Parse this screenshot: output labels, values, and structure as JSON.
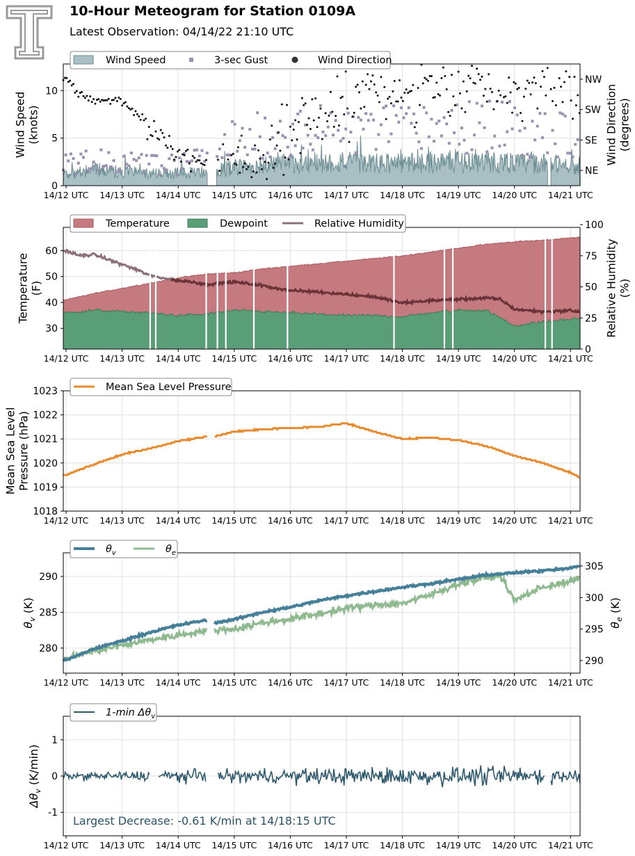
{
  "header": {
    "title": "10-Hour Meteogram for Station 0109A",
    "subtitle": "Latest Observation: 04/14/22 21:10 UTC"
  },
  "colors": {
    "wind_fill": "#a9bfc4",
    "wind_line": "#6b8d92",
    "gust": "#9a91b0",
    "direction": "#111111",
    "temperature": "#c47a7e",
    "dewpoint": "#5a9e78",
    "rh": "#8b7078",
    "rh_dark": "#6b3238",
    "pressure": "#e88b2e",
    "theta_v": "#467f98",
    "theta_e": "#8fb98e",
    "dtheta": "#2f5a6e",
    "annotation": "#2a5468",
    "grid": "#e0e0e0",
    "logo": "#9a9a9a"
  },
  "icons": {
    "logo": "double-t-logo"
  },
  "chart_data": [
    {
      "id": "wind",
      "type": "area",
      "x_ticks": [
        "14/12 UTC",
        "14/13 UTC",
        "14/14 UTC",
        "14/15 UTC",
        "14/16 UTC",
        "14/17 UTC",
        "14/18 UTC",
        "14/19 UTC",
        "14/20 UTC",
        "14/21 UTC"
      ],
      "ylabel": "Wind Speed\n(knots)",
      "ylabel2": "Wind Direction\n(degrees)",
      "ylim": [
        0,
        12.8
      ],
      "y_ticks": [
        0,
        5,
        10
      ],
      "y2_ticks": [
        "NE",
        "SE",
        "SW",
        "NW"
      ],
      "y2_values": [
        45,
        135,
        225,
        315
      ],
      "y2lim": [
        0,
        360
      ],
      "legend": [
        "Wind Speed",
        "3-sec Gust",
        "Wind Direction"
      ],
      "legend_position": "top-left",
      "grid": true,
      "series": [
        {
          "name": "Wind Speed",
          "x": [
            12.0,
            12.5,
            13.0,
            13.5,
            14.0,
            14.5,
            15.0,
            15.5,
            16.0,
            16.5,
            17.0,
            17.5,
            18.0,
            18.5,
            19.0,
            19.5,
            20.0,
            20.5,
            21.0,
            21.17
          ],
          "values": [
            1.2,
            1.8,
            1.5,
            1.4,
            1.3,
            1.6,
            2.0,
            2.3,
            2.4,
            2.5,
            2.6,
            2.4,
            2.5,
            2.6,
            2.7,
            2.6,
            2.5,
            2.4,
            2.3,
            2.2
          ]
        },
        {
          "name": "3-sec Gust",
          "x": [
            12.0,
            12.5,
            13.0,
            13.5,
            14.0,
            14.5,
            15.0,
            15.5,
            16.0,
            16.5,
            17.0,
            17.5,
            18.0,
            18.5,
            19.0,
            19.5,
            20.0,
            20.5,
            21.0,
            21.17
          ],
          "values": [
            2.5,
            3.0,
            2.8,
            2.6,
            2.5,
            3.4,
            5.5,
            6.0,
            6.3,
            6.5,
            6.8,
            6.5,
            6.6,
            7.0,
            7.2,
            7.0,
            6.8,
            6.6,
            6.4,
            6.2
          ]
        },
        {
          "name": "Wind Direction",
          "x": [
            12.0,
            12.25,
            12.5,
            12.75,
            13.0,
            13.25,
            13.5,
            13.75,
            14.0,
            14.25,
            14.5,
            15.0,
            15.5,
            16.0,
            16.5,
            17.0,
            17.5,
            18.0,
            18.5,
            19.0,
            19.5,
            20.0,
            20.5,
            21.0,
            21.17
          ],
          "values": [
            320,
            270,
            250,
            255,
            250,
            215,
            160,
            140,
            95,
            80,
            60,
            40,
            60,
            150,
            210,
            260,
            300,
            260,
            320,
            300,
            290,
            280,
            300,
            280,
            270
          ]
        }
      ]
    },
    {
      "id": "thermo",
      "type": "area",
      "x_ticks": [
        "14/12 UTC",
        "14/13 UTC",
        "14/14 UTC",
        "14/15 UTC",
        "14/16 UTC",
        "14/17 UTC",
        "14/18 UTC",
        "14/19 UTC",
        "14/20 UTC",
        "14/21 UTC"
      ],
      "ylabel": "Temperature\n(F)",
      "ylabel2": "Relative Humidity\n(%)",
      "ylim": [
        22,
        69
      ],
      "y_ticks": [
        30,
        40,
        50,
        60
      ],
      "y2lim": [
        0,
        97.8
      ],
      "y2_ticks": [
        0,
        25,
        50,
        75,
        100
      ],
      "legend": [
        "Temperature",
        "Dewpoint",
        "Relative Humidity"
      ],
      "legend_position": "top-left",
      "grid": true,
      "gaps_x": [
        13.5,
        13.6,
        14.5,
        14.7,
        14.85,
        15.35,
        15.95,
        17.85,
        18.75,
        18.9,
        20.55,
        20.67
      ],
      "series": [
        {
          "name": "Temperature",
          "x": [
            12.0,
            12.5,
            13.0,
            13.5,
            14.0,
            14.5,
            15.0,
            15.5,
            16.0,
            16.5,
            17.0,
            17.5,
            18.0,
            18.5,
            19.0,
            19.5,
            20.0,
            20.5,
            21.0,
            21.17
          ],
          "values": [
            41.0,
            43.5,
            45.5,
            47.5,
            49.5,
            51.0,
            51.5,
            53.0,
            54.0,
            55.0,
            56.0,
            57.0,
            58.0,
            59.5,
            61.0,
            62.5,
            63.5,
            64.0,
            65.0,
            65.2
          ]
        },
        {
          "name": "Dewpoint",
          "x": [
            12.0,
            12.5,
            13.0,
            13.5,
            14.0,
            14.5,
            15.0,
            15.5,
            16.0,
            16.5,
            17.0,
            17.5,
            18.0,
            18.5,
            19.0,
            19.5,
            20.0,
            20.5,
            21.0,
            21.17
          ],
          "values": [
            36.0,
            37.0,
            36.5,
            36.0,
            35.0,
            35.5,
            37.0,
            36.5,
            36.0,
            35.5,
            35.0,
            35.0,
            34.5,
            36.0,
            37.0,
            37.0,
            31.0,
            32.5,
            33.5,
            34.0
          ]
        },
        {
          "name": "Relative Humidity",
          "x": [
            12.0,
            12.25,
            12.5,
            12.75,
            13.0,
            13.25,
            13.5,
            13.75,
            14.0,
            14.25,
            14.5,
            15.0,
            15.5,
            16.0,
            16.5,
            17.0,
            17.5,
            18.0,
            18.5,
            19.0,
            19.5,
            19.75,
            20.0,
            20.5,
            21.0,
            21.17
          ],
          "values": [
            79,
            75,
            76,
            72,
            68,
            64,
            59,
            57,
            55,
            54,
            52,
            54,
            51,
            47,
            46,
            44,
            42,
            37,
            39,
            40,
            41,
            40,
            32,
            30,
            31,
            30
          ]
        }
      ]
    },
    {
      "id": "pressure",
      "type": "line",
      "x_ticks": [
        "14/12 UTC",
        "14/13 UTC",
        "14/14 UTC",
        "14/15 UTC",
        "14/16 UTC",
        "14/17 UTC",
        "14/18 UTC",
        "14/19 UTC",
        "14/20 UTC",
        "14/21 UTC"
      ],
      "ylabel": "Mean Sea Level\nPressure (hPa)",
      "ylim": [
        1018,
        1023
      ],
      "y_ticks": [
        1018,
        1019,
        1020,
        1021,
        1022,
        1023
      ],
      "legend": [
        "Mean Sea Level Pressure"
      ],
      "legend_position": "top-left",
      "grid": true,
      "series": [
        {
          "name": "Mean Sea Level Pressure",
          "x": [
            12.0,
            12.5,
            13.0,
            13.5,
            14.0,
            14.5,
            14.65,
            15.0,
            15.5,
            16.0,
            16.5,
            17.0,
            17.5,
            18.0,
            18.5,
            19.0,
            19.5,
            20.0,
            20.5,
            21.0,
            21.17
          ],
          "values": [
            1019.5,
            1019.95,
            1020.35,
            1020.6,
            1020.9,
            1021.1,
            1021.1,
            1021.3,
            1021.4,
            1021.45,
            1021.5,
            1021.65,
            1021.3,
            1021.0,
            1021.05,
            1020.95,
            1020.7,
            1020.3,
            1020.0,
            1019.6,
            1019.4
          ]
        }
      ]
    },
    {
      "id": "theta",
      "type": "line",
      "x_ticks": [
        "14/12 UTC",
        "14/13 UTC",
        "14/14 UTC",
        "14/15 UTC",
        "14/16 UTC",
        "14/17 UTC",
        "14/18 UTC",
        "14/19 UTC",
        "14/20 UTC",
        "14/21 UTC"
      ],
      "ylabel": "θv (K)",
      "ylabel2": "θe (K)",
      "ylim": [
        276.5,
        293.3
      ],
      "y_ticks": [
        280,
        285,
        290
      ],
      "y2lim": [
        288.0,
        307.1
      ],
      "y2_ticks": [
        290,
        295,
        300,
        305
      ],
      "legend": [
        "θv",
        "θe"
      ],
      "legend_position": "top-left",
      "grid": true,
      "series": [
        {
          "name": "θv",
          "x": [
            12.0,
            12.5,
            13.0,
            13.5,
            14.0,
            14.5,
            14.65,
            15.0,
            15.5,
            16.0,
            16.5,
            17.0,
            17.5,
            18.0,
            18.5,
            19.0,
            19.5,
            20.0,
            20.5,
            21.0,
            21.17
          ],
          "values": [
            278.3,
            279.9,
            281.0,
            282.2,
            283.2,
            283.9,
            283.5,
            284.0,
            285.0,
            285.7,
            286.6,
            287.3,
            287.9,
            288.5,
            289.0,
            289.6,
            290.2,
            290.5,
            290.8,
            291.2,
            291.4
          ]
        },
        {
          "name": "θe",
          "x": [
            12.0,
            12.5,
            13.0,
            13.5,
            14.0,
            14.5,
            15.0,
            15.5,
            16.0,
            16.5,
            17.0,
            17.5,
            18.0,
            18.5,
            19.0,
            19.5,
            19.75,
            20.0,
            20.5,
            21.0,
            21.17
          ],
          "values": [
            290.3,
            291.5,
            292.4,
            293.3,
            294.0,
            294.8,
            295.0,
            296.0,
            296.6,
            297.4,
            298.3,
            298.8,
            299.1,
            300.4,
            302.2,
            303.2,
            303.5,
            299.5,
            301.7,
            302.5,
            303.2
          ]
        }
      ]
    },
    {
      "id": "dtheta",
      "type": "line",
      "x_ticks": [
        "14/12 UTC",
        "14/13 UTC",
        "14/14 UTC",
        "14/15 UTC",
        "14/16 UTC",
        "14/17 UTC",
        "14/18 UTC",
        "14/19 UTC",
        "14/20 UTC",
        "14/21 UTC"
      ],
      "ylabel": "Δθv (K/min)",
      "ylim": [
        -1.65,
        1.65
      ],
      "y_ticks": [
        -1,
        0,
        1
      ],
      "legend": [
        "1-min Δθv"
      ],
      "legend_position": "top-left",
      "grid": true,
      "annotation": "Largest Decrease: -0.61 K/min at 14/18:15 UTC",
      "series": [
        {
          "name": "1-min Δθv",
          "amplitude_by_hour": {
            "x": [
              12,
              13,
              14,
              15,
              16,
              17,
              18,
              19,
              20,
              21
            ],
            "amp": [
              0.12,
              0.15,
              0.2,
              0.22,
              0.25,
              0.28,
              0.3,
              0.3,
              0.32,
              0.28
            ]
          }
        }
      ]
    }
  ]
}
